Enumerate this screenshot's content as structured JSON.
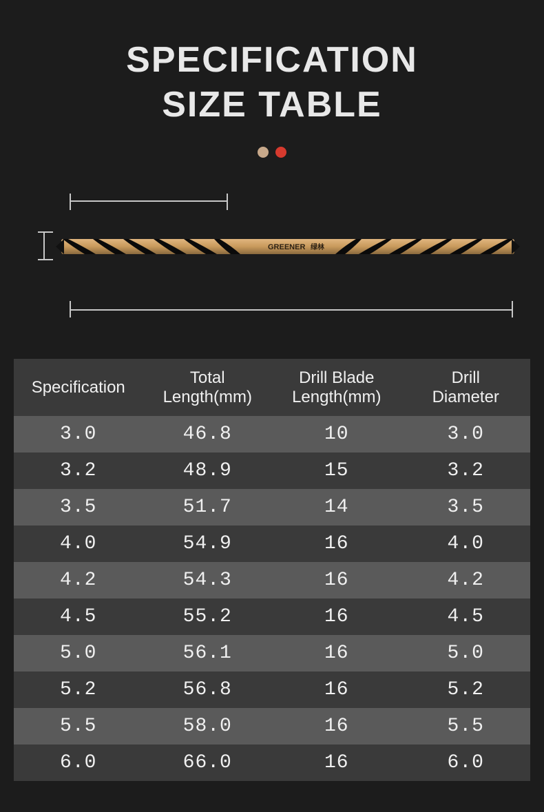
{
  "header": {
    "title_line1": "SPECIFICATION",
    "title_line2": "SIZE TABLE",
    "dot_colors": [
      "#c7a88a",
      "#d63a2e"
    ]
  },
  "drill": {
    "brand_en": "GREENER",
    "brand_cn": "绿林",
    "body_color": "#c99a5c",
    "flute_color": "#0a0a0a",
    "highlight_color": "#e8c59a"
  },
  "diagram": {
    "bracket_color": "#c8c8c8"
  },
  "table": {
    "header_bg": "#3a3a3a",
    "row_odd_bg": "#5a5a5a",
    "row_even_bg": "#3a3a3a",
    "text_color": "#f0f0f0",
    "columns": [
      "Specification",
      "Total Length(mm)",
      "Drill Blade Length(mm)",
      "Drill Diameter"
    ],
    "rows": [
      [
        "3.0",
        "46.8",
        "10",
        "3.0"
      ],
      [
        "3.2",
        "48.9",
        "15",
        "3.2"
      ],
      [
        "3.5",
        "51.7",
        "14",
        "3.5"
      ],
      [
        "4.0",
        "54.9",
        "16",
        "4.0"
      ],
      [
        "4.2",
        "54.3",
        "16",
        "4.2"
      ],
      [
        "4.5",
        "55.2",
        "16",
        "4.5"
      ],
      [
        "5.0",
        "56.1",
        "16",
        "5.0"
      ],
      [
        "5.2",
        "56.8",
        "16",
        "5.2"
      ],
      [
        "5.5",
        "58.0",
        "16",
        "5.5"
      ],
      [
        "6.0",
        "66.0",
        "16",
        "6.0"
      ]
    ]
  },
  "colors": {
    "background": "#1c1c1c",
    "title_text": "#e8e8e8"
  }
}
